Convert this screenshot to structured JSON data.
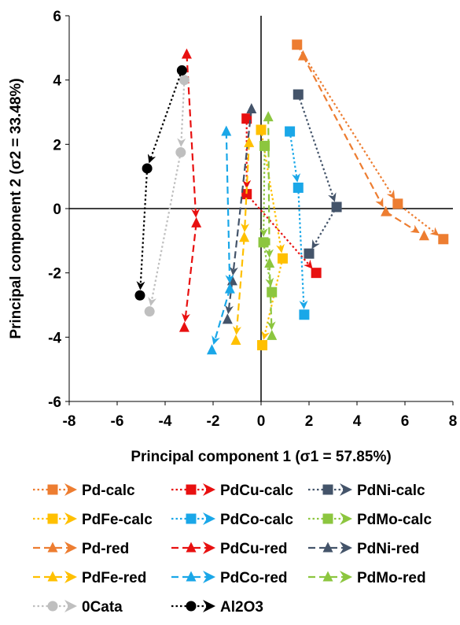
{
  "chart_data": {
    "type": "scatter",
    "xlabel": "Principal component 1 (σ1 = 57.85%)",
    "ylabel": "Principal component 2 (σ2 = 33.48%)",
    "xlim": [
      -8,
      8
    ],
    "ylim": [
      -6,
      6
    ],
    "xticks": [
      "-8",
      "-6",
      "-4",
      "-2",
      "0",
      "2",
      "4",
      "6",
      "8"
    ],
    "yticks": [
      "-6",
      "-4",
      "-2",
      "0",
      "2",
      "4",
      "6"
    ],
    "grid": false,
    "legend_position": "bottom",
    "series": [
      {
        "name": "Pd-calc",
        "color": "#ED7D31",
        "line": "dotted",
        "marker": "square",
        "points": [
          [
            1.5,
            5.1
          ],
          [
            5.7,
            0.15
          ],
          [
            7.6,
            -0.95
          ]
        ]
      },
      {
        "name": "PdCu-calc",
        "color": "#E81010",
        "line": "dotted",
        "marker": "square",
        "points": [
          [
            -0.6,
            2.8
          ],
          [
            -0.6,
            0.45
          ],
          [
            2.3,
            -2.0
          ]
        ]
      },
      {
        "name": "PdNi-calc",
        "color": "#44546A",
        "line": "dotted",
        "marker": "square",
        "points": [
          [
            1.55,
            3.55
          ],
          [
            3.15,
            0.05
          ],
          [
            2.0,
            -1.4
          ]
        ]
      },
      {
        "name": "PdFe-calc",
        "color": "#FFC000",
        "line": "dotted",
        "marker": "square",
        "points": [
          [
            0.0,
            2.45
          ],
          [
            0.9,
            -1.55
          ],
          [
            0.05,
            -4.25
          ]
        ]
      },
      {
        "name": "PdCo-calc",
        "color": "#1AA7E8",
        "line": "dotted",
        "marker": "square",
        "points": [
          [
            1.2,
            2.4
          ],
          [
            1.55,
            0.65
          ],
          [
            1.8,
            -3.3
          ]
        ]
      },
      {
        "name": "PdMo-calc",
        "color": "#8CC63F",
        "line": "dotted",
        "marker": "square",
        "points": [
          [
            0.15,
            1.95
          ],
          [
            0.1,
            -1.05
          ],
          [
            0.45,
            -2.6
          ]
        ]
      },
      {
        "name": "Pd-red",
        "color": "#ED7D31",
        "line": "dashed",
        "marker": "triangle",
        "points": [
          [
            1.75,
            4.75
          ],
          [
            5.2,
            -0.1
          ],
          [
            6.8,
            -0.85
          ]
        ]
      },
      {
        "name": "PdCu-red",
        "color": "#E81010",
        "line": "dashed",
        "marker": "triangle",
        "points": [
          [
            -3.1,
            4.8
          ],
          [
            -2.7,
            -0.45
          ],
          [
            -3.2,
            -3.7
          ]
        ]
      },
      {
        "name": "PdNi-red",
        "color": "#44546A",
        "line": "dashed",
        "marker": "triangle",
        "points": [
          [
            -0.4,
            3.1
          ],
          [
            -1.2,
            -2.25
          ],
          [
            -1.4,
            -3.45
          ]
        ]
      },
      {
        "name": "PdFe-red",
        "color": "#FFC000",
        "line": "dashed",
        "marker": "triangle",
        "points": [
          [
            -0.5,
            2.05
          ],
          [
            -0.7,
            -0.9
          ],
          [
            -1.05,
            -4.1
          ]
        ]
      },
      {
        "name": "PdCo-red",
        "color": "#1AA7E8",
        "line": "dashed",
        "marker": "triangle",
        "points": [
          [
            -1.45,
            2.4
          ],
          [
            -1.3,
            -2.5
          ],
          [
            -2.05,
            -4.4
          ]
        ]
      },
      {
        "name": "PdMo-red",
        "color": "#8CC63F",
        "line": "dashed",
        "marker": "triangle",
        "points": [
          [
            0.3,
            2.85
          ],
          [
            0.35,
            -1.7
          ],
          [
            0.45,
            -3.95
          ]
        ]
      },
      {
        "name": "0Cata",
        "color": "#BFBFBF",
        "line": "dotted",
        "marker": "circle",
        "points": [
          [
            -3.2,
            4.0
          ],
          [
            -3.35,
            1.75
          ],
          [
            -4.65,
            -3.2
          ]
        ]
      },
      {
        "name": "Al2O3",
        "color": "#000000",
        "line": "dotted",
        "marker": "circle",
        "points": [
          [
            -3.3,
            4.3
          ],
          [
            -4.75,
            1.25
          ],
          [
            -5.05,
            -2.7
          ]
        ]
      }
    ]
  }
}
